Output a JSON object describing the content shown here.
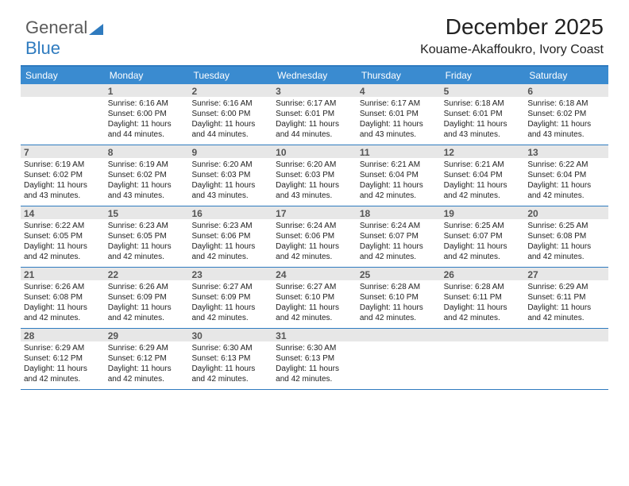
{
  "logo": {
    "text1": "General",
    "text2": "Blue",
    "triangle_color": "#2f7bbf"
  },
  "header": {
    "title": "December 2025",
    "subtitle": "Kouame-Akaffoukro, Ivory Coast",
    "title_fontsize": 28,
    "subtitle_fontsize": 16
  },
  "colors": {
    "header_bar": "#3a8bd0",
    "border": "#2f7bbf",
    "daynum_bg": "#e7e7e7",
    "text": "#222222"
  },
  "day_names": [
    "Sunday",
    "Monday",
    "Tuesday",
    "Wednesday",
    "Thursday",
    "Friday",
    "Saturday"
  ],
  "weeks": [
    [
      {
        "n": "",
        "sr": "",
        "ss": "",
        "dl": ""
      },
      {
        "n": "1",
        "sr": "6:16 AM",
        "ss": "6:00 PM",
        "dl": "11 hours and 44 minutes."
      },
      {
        "n": "2",
        "sr": "6:16 AM",
        "ss": "6:00 PM",
        "dl": "11 hours and 44 minutes."
      },
      {
        "n": "3",
        "sr": "6:17 AM",
        "ss": "6:01 PM",
        "dl": "11 hours and 44 minutes."
      },
      {
        "n": "4",
        "sr": "6:17 AM",
        "ss": "6:01 PM",
        "dl": "11 hours and 43 minutes."
      },
      {
        "n": "5",
        "sr": "6:18 AM",
        "ss": "6:01 PM",
        "dl": "11 hours and 43 minutes."
      },
      {
        "n": "6",
        "sr": "6:18 AM",
        "ss": "6:02 PM",
        "dl": "11 hours and 43 minutes."
      }
    ],
    [
      {
        "n": "7",
        "sr": "6:19 AM",
        "ss": "6:02 PM",
        "dl": "11 hours and 43 minutes."
      },
      {
        "n": "8",
        "sr": "6:19 AM",
        "ss": "6:02 PM",
        "dl": "11 hours and 43 minutes."
      },
      {
        "n": "9",
        "sr": "6:20 AM",
        "ss": "6:03 PM",
        "dl": "11 hours and 43 minutes."
      },
      {
        "n": "10",
        "sr": "6:20 AM",
        "ss": "6:03 PM",
        "dl": "11 hours and 43 minutes."
      },
      {
        "n": "11",
        "sr": "6:21 AM",
        "ss": "6:04 PM",
        "dl": "11 hours and 42 minutes."
      },
      {
        "n": "12",
        "sr": "6:21 AM",
        "ss": "6:04 PM",
        "dl": "11 hours and 42 minutes."
      },
      {
        "n": "13",
        "sr": "6:22 AM",
        "ss": "6:04 PM",
        "dl": "11 hours and 42 minutes."
      }
    ],
    [
      {
        "n": "14",
        "sr": "6:22 AM",
        "ss": "6:05 PM",
        "dl": "11 hours and 42 minutes."
      },
      {
        "n": "15",
        "sr": "6:23 AM",
        "ss": "6:05 PM",
        "dl": "11 hours and 42 minutes."
      },
      {
        "n": "16",
        "sr": "6:23 AM",
        "ss": "6:06 PM",
        "dl": "11 hours and 42 minutes."
      },
      {
        "n": "17",
        "sr": "6:24 AM",
        "ss": "6:06 PM",
        "dl": "11 hours and 42 minutes."
      },
      {
        "n": "18",
        "sr": "6:24 AM",
        "ss": "6:07 PM",
        "dl": "11 hours and 42 minutes."
      },
      {
        "n": "19",
        "sr": "6:25 AM",
        "ss": "6:07 PM",
        "dl": "11 hours and 42 minutes."
      },
      {
        "n": "20",
        "sr": "6:25 AM",
        "ss": "6:08 PM",
        "dl": "11 hours and 42 minutes."
      }
    ],
    [
      {
        "n": "21",
        "sr": "6:26 AM",
        "ss": "6:08 PM",
        "dl": "11 hours and 42 minutes."
      },
      {
        "n": "22",
        "sr": "6:26 AM",
        "ss": "6:09 PM",
        "dl": "11 hours and 42 minutes."
      },
      {
        "n": "23",
        "sr": "6:27 AM",
        "ss": "6:09 PM",
        "dl": "11 hours and 42 minutes."
      },
      {
        "n": "24",
        "sr": "6:27 AM",
        "ss": "6:10 PM",
        "dl": "11 hours and 42 minutes."
      },
      {
        "n": "25",
        "sr": "6:28 AM",
        "ss": "6:10 PM",
        "dl": "11 hours and 42 minutes."
      },
      {
        "n": "26",
        "sr": "6:28 AM",
        "ss": "6:11 PM",
        "dl": "11 hours and 42 minutes."
      },
      {
        "n": "27",
        "sr": "6:29 AM",
        "ss": "6:11 PM",
        "dl": "11 hours and 42 minutes."
      }
    ],
    [
      {
        "n": "28",
        "sr": "6:29 AM",
        "ss": "6:12 PM",
        "dl": "11 hours and 42 minutes."
      },
      {
        "n": "29",
        "sr": "6:29 AM",
        "ss": "6:12 PM",
        "dl": "11 hours and 42 minutes."
      },
      {
        "n": "30",
        "sr": "6:30 AM",
        "ss": "6:13 PM",
        "dl": "11 hours and 42 minutes."
      },
      {
        "n": "31",
        "sr": "6:30 AM",
        "ss": "6:13 PM",
        "dl": "11 hours and 42 minutes."
      },
      {
        "n": "",
        "sr": "",
        "ss": "",
        "dl": ""
      },
      {
        "n": "",
        "sr": "",
        "ss": "",
        "dl": ""
      },
      {
        "n": "",
        "sr": "",
        "ss": "",
        "dl": ""
      }
    ]
  ],
  "labels": {
    "sunrise": "Sunrise:",
    "sunset": "Sunset:",
    "daylight": "Daylight:"
  }
}
